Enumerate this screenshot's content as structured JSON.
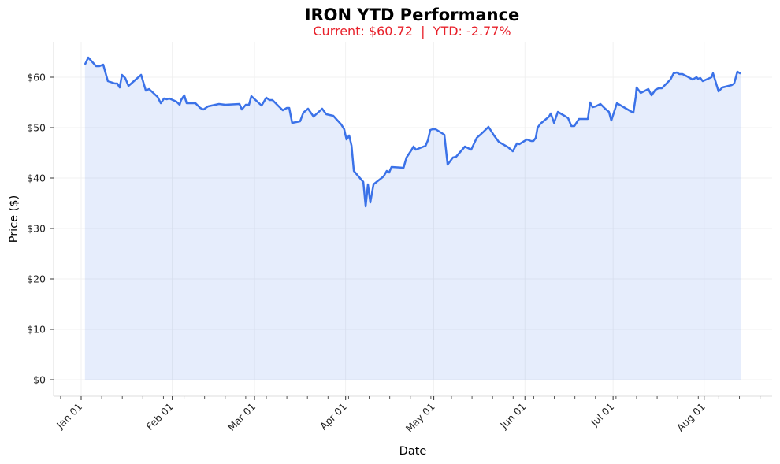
{
  "chart_data": {
    "type": "area",
    "title": "IRON YTD Performance",
    "subtitle": "Current: $60.72  |  YTD: -2.77%",
    "xlabel": "Date",
    "ylabel": "Price ($)",
    "x_unit": "days since Jan 01",
    "xlim": [
      -9.4,
      235.3
    ],
    "ylim": [
      -3.3,
      67
    ],
    "grid": true,
    "colors": {
      "line": "#3b72e8",
      "fill": "#dce6f9",
      "subtitle": "#e8202a"
    },
    "y_ticks": [
      {
        "value": 0,
        "label": "$0"
      },
      {
        "value": 10,
        "label": "$10"
      },
      {
        "value": 20,
        "label": "$20"
      },
      {
        "value": 30,
        "label": "$30"
      },
      {
        "value": 40,
        "label": "$40"
      },
      {
        "value": 50,
        "label": "$50"
      },
      {
        "value": 60,
        "label": "$60"
      }
    ],
    "x_ticks": [
      {
        "value": 0,
        "label": "Jan 01"
      },
      {
        "value": 31,
        "label": "Feb 01"
      },
      {
        "value": 59,
        "label": "Mar 01"
      },
      {
        "value": 90,
        "label": "Apr 01"
      },
      {
        "value": 120,
        "label": "May 01"
      },
      {
        "value": 151,
        "label": "Jun 01"
      },
      {
        "value": 181,
        "label": "Jul 01"
      },
      {
        "value": 212,
        "label": "Aug 01"
      }
    ],
    "series": [
      {
        "name": "IRON",
        "x": [
          1.3,
          2.4,
          5.1,
          6.2,
          7.5,
          9.1,
          11.5,
          12.3,
          13.1,
          13.9,
          15.0,
          16.1,
          20.4,
          22.0,
          23.1,
          26.0,
          27.1,
          28.2,
          29.2,
          30.0,
          32.4,
          33.5,
          34.0,
          35.1,
          35.9,
          38.9,
          40.5,
          41.6,
          43.2,
          46.9,
          49.1,
          53.9,
          54.7,
          56.0,
          57.1,
          57.9,
          61.4,
          63.0,
          64.1,
          65.1,
          68.6,
          70.0,
          70.8,
          71.8,
          74.5,
          75.6,
          77.2,
          79.1,
          82.0,
          83.4,
          85.8,
          88.5,
          89.5,
          90.3,
          91.2,
          92.0,
          92.8,
          96.0,
          96.8,
          97.6,
          98.4,
          99.5,
          102.9,
          104.0,
          104.8,
          105.6,
          109.7,
          110.7,
          112.3,
          113.1,
          113.9,
          117.2,
          118.0,
          118.8,
          119.6,
          120.6,
          123.6,
          124.7,
          126.5,
          127.6,
          130.6,
          132.7,
          134.6,
          136.7,
          138.6,
          140.5,
          142.1,
          145.3,
          146.9,
          148.3,
          149.1,
          150.4,
          151.7,
          153.1,
          153.9,
          154.7,
          155.3,
          156.3,
          159.2,
          159.8,
          160.9,
          162.2,
          164.9,
          165.7,
          166.8,
          167.8,
          169.4,
          172.4,
          173.2,
          174.0,
          175.1,
          176.7,
          178.3,
          179.6,
          180.4,
          182.3,
          186.9,
          187.9,
          188.7,
          189.0,
          190.4,
          193.0,
          194.1,
          195.4,
          196.5,
          197.6,
          199.7,
          200.5,
          201.6,
          202.7,
          203.5,
          204.6,
          206.2,
          208.1,
          209.4,
          209.9,
          210.7,
          211.5,
          214.5,
          215.0,
          216.9,
          218.2,
          221.4,
          222.2,
          223.3,
          224.4
        ],
        "values": [
          62.5,
          63.91,
          62.19,
          62.19,
          62.5,
          59.22,
          58.75,
          58.75,
          57.97,
          60.47,
          59.84,
          58.28,
          60.47,
          57.34,
          57.66,
          56.09,
          54.84,
          55.78,
          55.63,
          55.78,
          55.16,
          54.53,
          55.47,
          56.41,
          54.84,
          54.84,
          53.91,
          53.59,
          54.22,
          54.69,
          54.53,
          54.69,
          53.59,
          54.53,
          54.53,
          56.25,
          54.38,
          55.94,
          55.47,
          55.47,
          53.44,
          53.91,
          53.91,
          50.94,
          51.25,
          52.97,
          53.75,
          52.19,
          53.75,
          52.66,
          52.34,
          50.63,
          49.69,
          47.66,
          48.44,
          46.41,
          41.41,
          39.22,
          34.38,
          38.75,
          35.16,
          38.75,
          40.31,
          41.41,
          41.09,
          42.19,
          42.03,
          44.06,
          45.47,
          46.25,
          45.63,
          46.41,
          47.5,
          49.53,
          49.69,
          49.69,
          48.59,
          42.66,
          44.06,
          44.22,
          46.25,
          45.63,
          47.97,
          49.06,
          50.16,
          48.44,
          47.19,
          46.09,
          45.31,
          46.88,
          46.72,
          47.19,
          47.66,
          47.34,
          47.34,
          47.97,
          50.0,
          50.78,
          52.19,
          52.81,
          50.94,
          53.13,
          52.19,
          51.88,
          50.31,
          50.31,
          51.72,
          51.72,
          55.0,
          54.06,
          54.22,
          54.69,
          53.75,
          53.13,
          51.41,
          54.84,
          53.28,
          52.97,
          56.09,
          57.97,
          56.88,
          57.66,
          56.41,
          57.5,
          57.81,
          57.81,
          59.06,
          59.53,
          60.78,
          60.94,
          60.63,
          60.63,
          60.16,
          59.53,
          60.0,
          59.69,
          59.84,
          59.22,
          60.0,
          60.78,
          57.19,
          57.97,
          58.44,
          58.75,
          61.09,
          60.72
        ]
      }
    ]
  }
}
